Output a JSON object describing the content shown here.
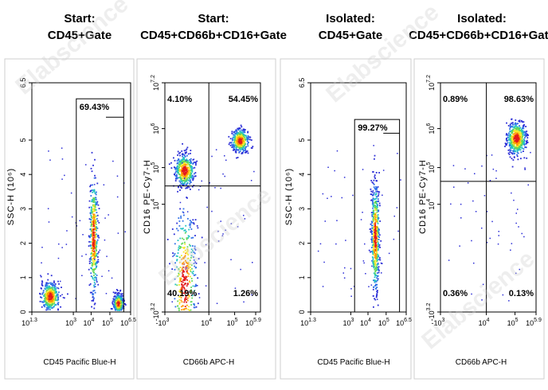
{
  "watermark": "Elabscience",
  "chart_data": [
    {
      "type": "scatter",
      "title_line1": "Start:",
      "title_line2": "CD45+Gate",
      "xlabel": "CD45 Pacific Blue-H",
      "ylabel": "SSC-H (10⁶)",
      "xticks": [
        "10",
        "10",
        "10",
        "10",
        "10"
      ],
      "xtick_exps": [
        "1.3",
        "3",
        "4",
        "5",
        "6.5"
      ],
      "yticks": [
        "0",
        "1",
        "2",
        "3",
        "4",
        "5",
        "6.5"
      ],
      "gate_label": "69.43%",
      "populations": [
        {
          "name": "lymphocyte cluster",
          "x": 0.18,
          "y": 0.07,
          "sx": 0.045,
          "sy": 0.03
        },
        {
          "name": "granulocyte column",
          "x": 0.62,
          "y": 0.33,
          "sx": 0.02,
          "sy": 0.13
        },
        {
          "name": "debris cluster",
          "x": 0.87,
          "y": 0.04,
          "sx": 0.025,
          "sy": 0.02
        }
      ]
    },
    {
      "type": "scatter",
      "title_line1": "Start:",
      "title_line2": "CD45+CD66b+CD16+Gate",
      "xlabel": "CD66b APC-H",
      "ylabel": "CD16 PE-Cy7-H",
      "xticks": [
        "-10",
        "10",
        "10",
        "10"
      ],
      "xtick_exps": [
        "3",
        "4",
        "5",
        "5.9"
      ],
      "yticks": [
        "-10",
        "10",
        "10",
        "10",
        "10"
      ],
      "ytick_exps": [
        "3.2",
        "4",
        "5",
        "6",
        "7.2"
      ],
      "quadrants": {
        "q1": "4.10%",
        "q2": "54.45%",
        "q3": "40.19%",
        "q4": "1.26%"
      },
      "populations": [
        {
          "name": "double positive",
          "x": 0.78,
          "y": 0.75,
          "sx": 0.045,
          "sy": 0.025
        },
        {
          "name": "cd16 only",
          "x": 0.2,
          "y": 0.62,
          "sx": 0.05,
          "sy": 0.035
        },
        {
          "name": "double negative",
          "x": 0.2,
          "y": 0.12,
          "sx": 0.06,
          "sy": 0.17
        }
      ]
    },
    {
      "type": "scatter",
      "title_line1": "Isolated:",
      "title_line2": "CD45+Gate",
      "xlabel": "CD45 Pacific Blue-H",
      "ylabel": "SSC-H (10⁶)",
      "xticks": [
        "10",
        "10",
        "10",
        "10",
        "10"
      ],
      "xtick_exps": [
        "1.3",
        "3",
        "4",
        "5",
        "6.5"
      ],
      "yticks": [
        "0",
        "1",
        "2",
        "3",
        "4",
        "5",
        "6.5"
      ],
      "gate_label": "99.27%",
      "populations": [
        {
          "name": "granulocyte column",
          "x": 0.67,
          "y": 0.33,
          "sx": 0.02,
          "sy": 0.12
        }
      ]
    },
    {
      "type": "scatter",
      "title_line1": "Isolated:",
      "title_line2": "CD45+CD66b+CD16+Gate",
      "xlabel": "CD66b APC-H",
      "ylabel": "CD16 PE-Cy7-H",
      "xticks": [
        "-10",
        "10",
        "10",
        "10"
      ],
      "xtick_exps": [
        "3",
        "4",
        "5",
        "5.9"
      ],
      "yticks": [
        "-10",
        "10",
        "10",
        "10",
        "10"
      ],
      "ytick_exps": [
        "3.2",
        "4",
        "5",
        "6",
        "7.2"
      ],
      "quadrants": {
        "q1": "0.89%",
        "q2": "98.63%",
        "q3": "0.36%",
        "q4": "0.13%"
      },
      "populations": [
        {
          "name": "double positive",
          "x": 0.79,
          "y": 0.76,
          "sx": 0.05,
          "sy": 0.035
        }
      ]
    }
  ]
}
